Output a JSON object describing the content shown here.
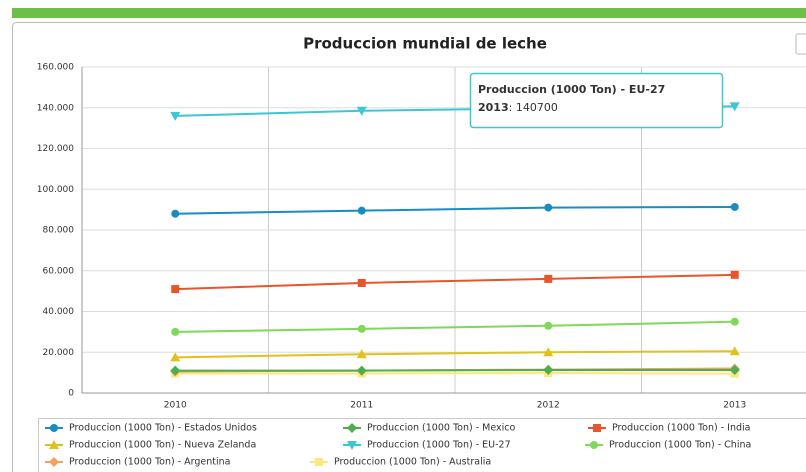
{
  "chart_data": {
    "type": "line",
    "title": "Produccion mundial de leche",
    "categories": [
      "2010",
      "2011",
      "2012",
      "2013"
    ],
    "ylim": [
      0,
      160000
    ],
    "yticks": [
      0,
      {
        "value": 20000,
        "label": "20.000"
      },
      {
        "value": 40000,
        "label": "40.000"
      },
      {
        "value": 60000,
        "label": "60.000"
      },
      {
        "value": 80000,
        "label": "80.000"
      },
      {
        "value": 100000,
        "label": "100.000"
      },
      {
        "value": 120000,
        "label": "120.000"
      },
      {
        "value": 140000,
        "label": "140.000"
      },
      {
        "value": 160000,
        "label": "160.000"
      }
    ],
    "grid": true,
    "series": [
      {
        "name": "Produccion (1000 Ton) - Estados Unidos",
        "color": "#1a8cc4",
        "marker": "circle",
        "values": [
          88000,
          89500,
          91000,
          91300
        ]
      },
      {
        "name": "Produccion (1000 Ton) - Mexico",
        "color": "#4cae4c",
        "marker": "diamond",
        "values": [
          11000,
          11000,
          11300,
          11300
        ]
      },
      {
        "name": "Produccion (1000 Ton) - India",
        "color": "#e8552a",
        "marker": "square",
        "values": [
          51000,
          54000,
          56000,
          58000
        ]
      },
      {
        "name": "Produccion (1000 Ton) - Nueva Zelanda",
        "color": "#e0c21a",
        "marker": "triangle",
        "values": [
          17500,
          19000,
          20000,
          20500
        ]
      },
      {
        "name": "Produccion (1000 Ton) - EU-27",
        "color": "#3cc6d6",
        "marker": "triangle-down",
        "values": [
          136000,
          138500,
          139800,
          140700
        ]
      },
      {
        "name": "Produccion (1000 Ton) - China",
        "color": "#7ed957",
        "marker": "circle",
        "values": [
          30000,
          31500,
          33000,
          35000
        ]
      },
      {
        "name": "Produccion (1000 Ton) - Argentina",
        "color": "#f4a060",
        "marker": "diamond",
        "values": [
          10500,
          11000,
          11500,
          12000
        ]
      },
      {
        "name": "Produccion (1000 Ton) - Australia",
        "color": "#ffe77a",
        "marker": "square",
        "values": [
          9500,
          9600,
          9800,
          9500
        ]
      }
    ],
    "tooltip": {
      "series": 4,
      "category": 3
    }
  }
}
